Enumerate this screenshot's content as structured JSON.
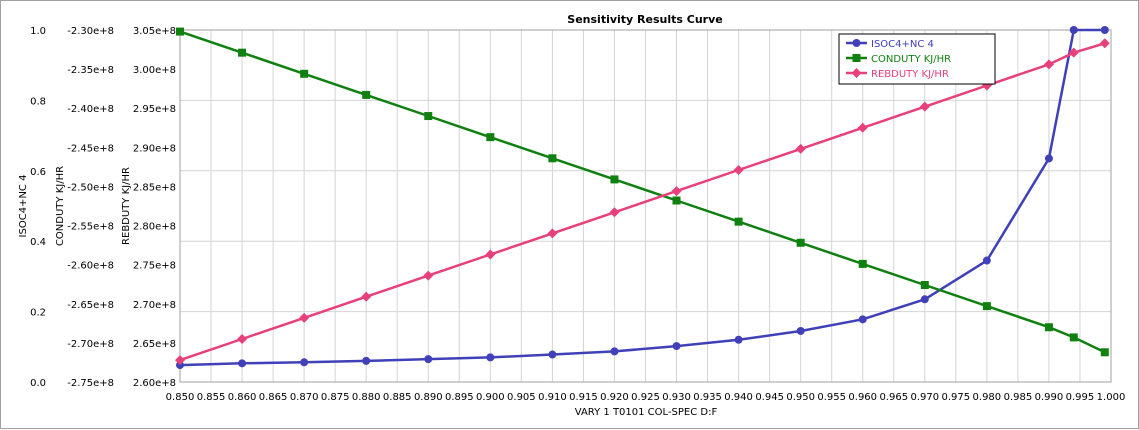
{
  "chart_data": {
    "type": "line",
    "title": "Sensitivity Results Curve",
    "xlabel": "VARY  1 T0101 COL-SPEC D:F",
    "xlim": [
      0.85,
      1.0
    ],
    "xticks": [
      "0.850",
      "0.855",
      "0.860",
      "0.865",
      "0.870",
      "0.875",
      "0.880",
      "0.885",
      "0.890",
      "0.895",
      "0.900",
      "0.905",
      "0.910",
      "0.915",
      "0.920",
      "0.925",
      "0.930",
      "0.935",
      "0.940",
      "0.945",
      "0.950",
      "0.955",
      "0.960",
      "0.965",
      "0.970",
      "0.975",
      "0.980",
      "0.985",
      "0.990",
      "0.995",
      "1.000"
    ],
    "x": [
      0.85,
      0.86,
      0.87,
      0.88,
      0.89,
      0.9,
      0.91,
      0.92,
      0.93,
      0.94,
      0.95,
      0.96,
      0.97,
      0.98,
      0.99,
      0.994,
      0.999
    ],
    "axes": [
      {
        "label": "ISOC4+NC 4",
        "lim": [
          0.0,
          1.0
        ],
        "ticks": [
          "1.0",
          "0.8",
          "0.6",
          "0.4",
          "0.2",
          "0.0"
        ]
      },
      {
        "label": "CONDUTY KJ/HR",
        "lim": [
          -275000000.0,
          -230000000.0
        ],
        "ticks": [
          "-2.30e+8",
          "-2.35e+8",
          "-2.40e+8",
          "-2.45e+8",
          "-2.50e+8",
          "-2.55e+8",
          "-2.60e+8",
          "-2.65e+8",
          "-2.70e+8",
          "-2.75e+8"
        ]
      },
      {
        "label": "REBDUTY KJ/HR",
        "lim": [
          260000000.0,
          305000000.0
        ],
        "ticks": [
          "3.05e+8",
          "3.00e+8",
          "2.95e+8",
          "2.90e+8",
          "2.85e+8",
          "2.80e+8",
          "2.75e+8",
          "2.70e+8",
          "2.65e+8",
          "2.60e+8"
        ]
      }
    ],
    "series": [
      {
        "name": "ISOC4+NC 4",
        "axis": 0,
        "color": "#4040b8",
        "marker": "circle",
        "values": [
          0.048,
          0.053,
          0.056,
          0.06,
          0.065,
          0.07,
          0.078,
          0.087,
          0.102,
          0.12,
          0.145,
          0.178,
          0.235,
          0.345,
          0.635,
          1.0,
          1.0
        ]
      },
      {
        "name": "CONDUTY KJ/HR",
        "axis": 1,
        "color": "#108010",
        "marker": "square",
        "values": [
          -230200000.0,
          -232900000.0,
          -235600000.0,
          -238300000.0,
          -241000000.0,
          -243700000.0,
          -246400000.0,
          -249100000.0,
          -251800000.0,
          -254500000.0,
          -257200000.0,
          -259900000.0,
          -262600000.0,
          -265300000.0,
          -268000000.0,
          -269300000.0,
          -271200000.0
        ]
      },
      {
        "name": "REBDUTY KJ/HR",
        "axis": 2,
        "color": "#e8407a",
        "marker": "diamond",
        "values": [
          262800000.0,
          265500000.0,
          268200000.0,
          270900000.0,
          273600000.0,
          276300000.0,
          279000000.0,
          281700000.0,
          284400000.0,
          287100000.0,
          289800000.0,
          292500000.0,
          295200000.0,
          297900000.0,
          300600000.0,
          302100000.0,
          303300000.0
        ]
      }
    ],
    "grid": true,
    "legend": "top-right"
  }
}
